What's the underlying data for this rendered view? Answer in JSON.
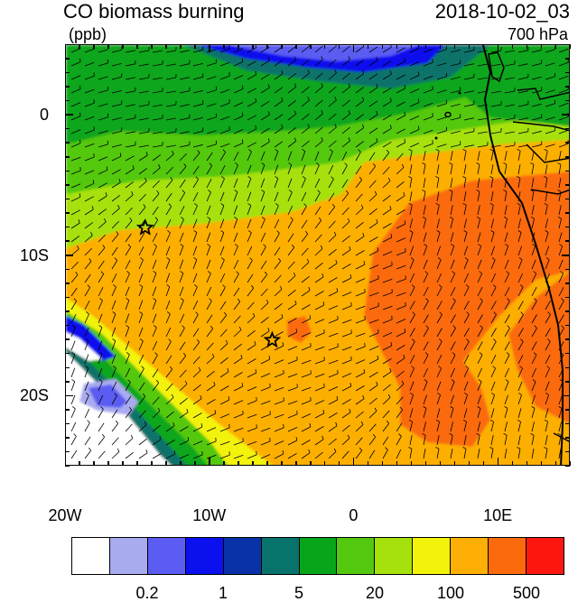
{
  "header": {
    "title": "CO biomass burning",
    "units": "(ppb)",
    "timestamp": "2018-10-02_03",
    "level": "700 hPa"
  },
  "map": {
    "lon_range": [
      -20,
      15
    ],
    "lat_range": [
      -25,
      5
    ],
    "x_ticks": [
      {
        "value": -20,
        "label": "20W"
      },
      {
        "value": -10,
        "label": "10W"
      },
      {
        "value": 0,
        "label": "0"
      },
      {
        "value": 10,
        "label": "10E"
      }
    ],
    "y_ticks": [
      {
        "value": 0,
        "label": "0"
      },
      {
        "value": -10,
        "label": "10S"
      },
      {
        "value": -20,
        "label": "20S"
      }
    ],
    "markers": [
      {
        "name": "star-marker-1",
        "lon": -14.5,
        "lat": -8
      },
      {
        "name": "star-marker-2",
        "lon": -5.7,
        "lat": -16
      }
    ],
    "wind_barbs": true,
    "coastlines": true
  },
  "colorbar": {
    "colors": [
      "#ffffff",
      "#a9abf0",
      "#5a5cf2",
      "#0a10ee",
      "#0a32a8",
      "#08736a",
      "#07a61a",
      "#53c80f",
      "#a6e00d",
      "#f2f20a",
      "#fdaf05",
      "#fb6b0e",
      "#fb1610"
    ],
    "labels": [
      {
        "text": "0.2",
        "boundary": 2
      },
      {
        "text": "1",
        "boundary": 4
      },
      {
        "text": "5",
        "boundary": 6
      },
      {
        "text": "20",
        "boundary": 8
      },
      {
        "text": "100",
        "boundary": 10
      },
      {
        "text": "500",
        "boundary": 12
      }
    ]
  }
}
